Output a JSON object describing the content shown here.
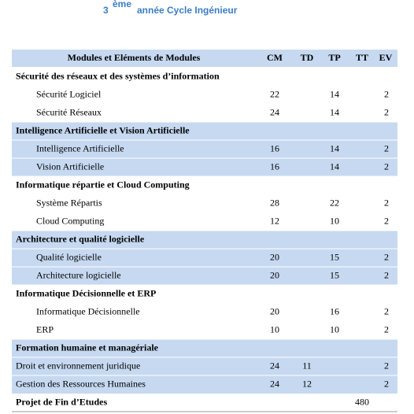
{
  "header": {
    "title_number": "3",
    "title_superscript": "ème",
    "title_text": "année Cycle Ingénieur"
  },
  "table": {
    "columns": [
      "Modules et Eléments de Modules",
      "CM",
      "TD",
      "TP",
      "TT",
      "EV"
    ],
    "groups": [
      {
        "title": "Sécurité des réseaux et des systèmes d’information",
        "indented": true,
        "rows": [
          {
            "name": "Sécurité Logiciel",
            "cm": 22,
            "tp": 14,
            "ev": 2
          },
          {
            "name": "Sécurité Réseaux",
            "cm": 24,
            "tp": 14,
            "ev": 2
          }
        ]
      },
      {
        "title": "Intelligence Artificielle et Vision Artificielle",
        "indented": true,
        "rows": [
          {
            "name": "Intelligence Artificielle",
            "cm": 16,
            "tp": 14,
            "ev": 2
          },
          {
            "name": "Vision Artificielle",
            "cm": 16,
            "tp": 14,
            "ev": 2
          }
        ]
      },
      {
        "title": "Informatique répartie et Cloud Computing",
        "indented": true,
        "rows": [
          {
            "name": "Système Répartis",
            "cm": 28,
            "tp": 22,
            "ev": 2
          },
          {
            "name": "Cloud Computing",
            "cm": 12,
            "tp": 10,
            "ev": 2
          }
        ]
      },
      {
        "title": "Architecture et qualité logicielle",
        "indented": true,
        "rows": [
          {
            "name": "Qualité logicielle",
            "cm": 20,
            "tp": 15,
            "ev": 2
          },
          {
            "name": "Architecture logicielle",
            "cm": 20,
            "tp": 15,
            "ev": 2
          }
        ]
      },
      {
        "title": "Informatique Décisionnelle et ERP",
        "indented": true,
        "rows": [
          {
            "name": "Informatique Décisionnelle",
            "cm": 20,
            "tp": 16,
            "ev": 2
          },
          {
            "name": "ERP",
            "cm": 10,
            "tp": 10,
            "ev": 2
          }
        ]
      },
      {
        "title": "Formation humaine et managériale",
        "indented": false,
        "rows": [
          {
            "name": "Droit et environnement juridique",
            "cm": 24,
            "td": 11,
            "ev": 2
          },
          {
            "name": "Gestion des Ressources Humaines",
            "cm": 24,
            "td": 12,
            "ev": 2
          }
        ]
      }
    ],
    "footer": {
      "name": "Projet de Fin d’Etudes",
      "tt": 480
    }
  }
}
